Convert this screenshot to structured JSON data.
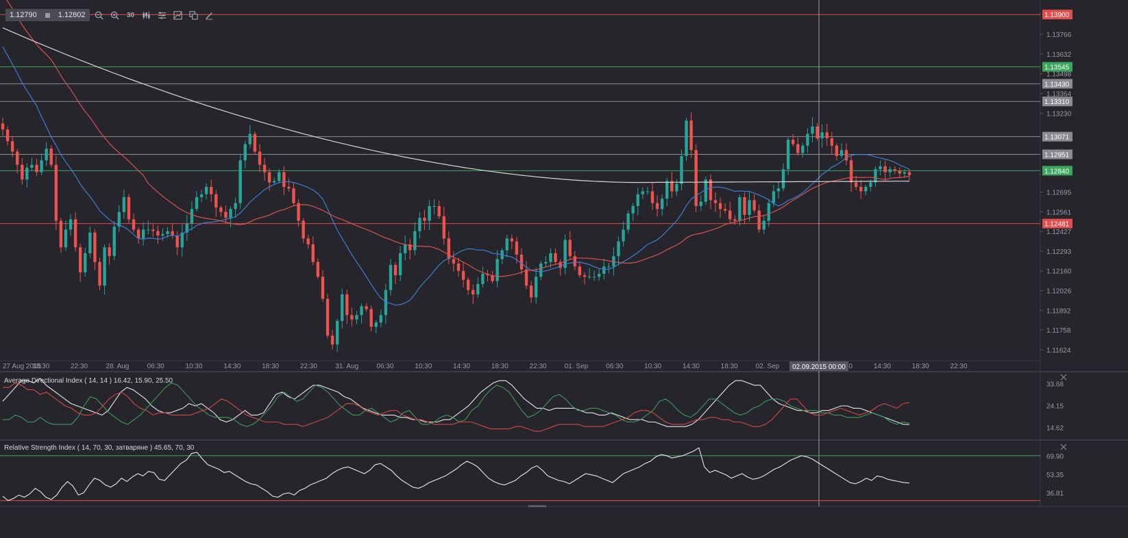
{
  "toolbar": {
    "bid": "1.12790",
    "ask": "1.12802",
    "timeframe": "30",
    "tools": [
      "zoom-out-icon",
      "zoom-in-icon",
      "timeframe",
      "candles-icon",
      "settings-sliders-icon",
      "chart-area-icon",
      "copy-icon",
      "pencil-icon"
    ]
  },
  "colors": {
    "background": "#25252b",
    "bull": "#26a69a",
    "bear": "#ef5350",
    "sma_fast": "#3b7fd4",
    "sma_mid": "#d9534f",
    "sma_slow": "#d8d8d8",
    "grid": "#34343b",
    "level_red": "#e04e4e",
    "level_green": "#3aa75c",
    "level_gray": "#8a8a90"
  },
  "chart_data": [
    {
      "type": "candlestick",
      "symbol_precision": 5,
      "ylim": [
        1.1155,
        1.1398
      ],
      "y_ticks": [
        "1.13766",
        "1.13632",
        "1.13498",
        "1.13364",
        "1.13230",
        "1.12695",
        "1.12561",
        "1.12427",
        "1.12293",
        "1.12160",
        "1.12026",
        "1.11892",
        "1.11758",
        "1.11624"
      ],
      "x_ticks": [
        "27 Aug 2015",
        "18:30",
        "22:30",
        "28. Aug",
        "06:30",
        "10:30",
        "14:30",
        "18:30",
        "22:30",
        "31. Aug",
        "06:30",
        "10:30",
        "14:30",
        "18:30",
        "22:30",
        "01. Sep",
        "06:30",
        "10:30",
        "14:30",
        "18:30",
        "02. Sep",
        "06:30",
        "10:30",
        "14:30",
        "18:30",
        "22:30"
      ],
      "crosshair_label": "02.09.2015 00:00",
      "horizontal_levels": [
        {
          "value": 1.139,
          "label": "1.13900",
          "color": "red"
        },
        {
          "value": 1.13545,
          "label": "1.13545",
          "color": "green"
        },
        {
          "value": 1.1343,
          "label": "1.13430",
          "color": "gray"
        },
        {
          "value": 1.1331,
          "label": "1.13310",
          "color": "gray"
        },
        {
          "value": 1.13071,
          "label": "1.13071",
          "color": "gray"
        },
        {
          "value": 1.12951,
          "label": "1.12951",
          "color": "gray"
        },
        {
          "value": 1.1284,
          "label": "1.12840",
          "color": "green"
        },
        {
          "value": 1.12481,
          "label": "1.12481",
          "color": "red"
        }
      ],
      "series": [
        {
          "kind": "close",
          "values": [
            1.1312,
            1.1304,
            1.1297,
            1.1288,
            1.1278,
            1.1286,
            1.1288,
            1.1283,
            1.1291,
            1.1299,
            1.1288,
            1.125,
            1.1232,
            1.1244,
            1.1251,
            1.1232,
            1.1215,
            1.1228,
            1.1242,
            1.1222,
            1.1206,
            1.1232,
            1.1226,
            1.1246,
            1.1256,
            1.1266,
            1.1251,
            1.1244,
            1.1238,
            1.1244,
            1.1244,
            1.1243,
            1.124,
            1.1241,
            1.1243,
            1.124,
            1.1232,
            1.1242,
            1.1248,
            1.1258,
            1.1266,
            1.1268,
            1.1273,
            1.1268,
            1.1259,
            1.1256,
            1.1252,
            1.1258,
            1.1262,
            1.1291,
            1.1302,
            1.1309,
            1.1297,
            1.1288,
            1.1283,
            1.1276,
            1.1277,
            1.1283,
            1.1273,
            1.1272,
            1.1262,
            1.125,
            1.1238,
            1.1234,
            1.1222,
            1.1212,
            1.1197,
            1.1172,
            1.1166,
            1.1182,
            1.12,
            1.1186,
            1.1183,
            1.1186,
            1.1192,
            1.119,
            1.1178,
            1.1181,
            1.1186,
            1.1203,
            1.122,
            1.1213,
            1.1228,
            1.1234,
            1.123,
            1.1243,
            1.1252,
            1.125,
            1.126,
            1.126,
            1.1253,
            1.1238,
            1.1224,
            1.1221,
            1.1216,
            1.121,
            1.1203,
            1.12,
            1.1207,
            1.1214,
            1.1213,
            1.1209,
            1.1224,
            1.123,
            1.1238,
            1.1236,
            1.1227,
            1.1217,
            1.1206,
            1.1198,
            1.1212,
            1.1221,
            1.1222,
            1.1228,
            1.1222,
            1.1218,
            1.1237,
            1.1226,
            1.1219,
            1.1213,
            1.1212,
            1.1212,
            1.1212,
            1.1214,
            1.1219,
            1.1219,
            1.1226,
            1.1236,
            1.1244,
            1.1255,
            1.126,
            1.1268,
            1.127,
            1.127,
            1.1262,
            1.1258,
            1.1265,
            1.1277,
            1.127,
            1.1275,
            1.1294,
            1.1318,
            1.1298,
            1.126,
            1.1263,
            1.1278,
            1.1264,
            1.1262,
            1.1258,
            1.1257,
            1.1251,
            1.125,
            1.1266,
            1.1254,
            1.1264,
            1.1257,
            1.1244,
            1.125,
            1.1262,
            1.127,
            1.1272,
            1.1285,
            1.1305,
            1.1302,
            1.1296,
            1.1301,
            1.1309,
            1.1314,
            1.1306,
            1.131,
            1.1306,
            1.1301,
            1.1294,
            1.1298,
            1.1291,
            1.1276,
            1.1273,
            1.127,
            1.1273,
            1.1276,
            1.1285,
            1.1287,
            1.1283,
            1.1285,
            1.1284,
            1.1282,
            1.1283,
            1.1281
          ]
        },
        {
          "kind": "sma_slow_endpoints",
          "values": [
            1.1381,
            1.1276
          ]
        }
      ]
    },
    {
      "type": "line",
      "title": "Average Directional Index ( 14, 14 ) 16.42, 15.90, 25.50",
      "y_ticks": [
        "33.68",
        "24.15",
        "14.62"
      ],
      "ylim": [
        10,
        38
      ],
      "series": [
        {
          "kind": "adx",
          "values": [
            26,
            29,
            32,
            35,
            35,
            34,
            36,
            33,
            31,
            29,
            27,
            25,
            24,
            23,
            22,
            21,
            20,
            22,
            26,
            30,
            32,
            31,
            29,
            27,
            24,
            22,
            21,
            21,
            22,
            23,
            25,
            24,
            25,
            23,
            21,
            18,
            17,
            18,
            20,
            22,
            20,
            20,
            21,
            25,
            29,
            30,
            28,
            27,
            29,
            31,
            33,
            33,
            32,
            31,
            30,
            28,
            27,
            25,
            23,
            22,
            21,
            20,
            20,
            20,
            19,
            19,
            18,
            18,
            17,
            17,
            17,
            18,
            18,
            20,
            22,
            24,
            27,
            30,
            32,
            34,
            35,
            35,
            33,
            30,
            27,
            25,
            23,
            23,
            22,
            23,
            23,
            23,
            23,
            22,
            21,
            21,
            20,
            20,
            21,
            20,
            19,
            18,
            18,
            18,
            17,
            17,
            16,
            15,
            15,
            15,
            15,
            16,
            18,
            21,
            24,
            27,
            30,
            33,
            35,
            35,
            34,
            33,
            33,
            30,
            27,
            25,
            24,
            23,
            22,
            22,
            21,
            21,
            22,
            22,
            23,
            24,
            24,
            23,
            23,
            22,
            21,
            20,
            19,
            18,
            17,
            16,
            15.9
          ]
        },
        {
          "kind": "plus_di",
          "values": [
            18,
            18,
            20,
            19,
            17,
            17,
            19,
            17,
            16,
            16,
            16,
            16,
            19,
            24,
            28,
            27,
            24,
            21,
            19,
            17,
            16,
            18,
            20,
            23,
            26,
            29,
            32,
            34,
            33,
            30,
            27,
            24,
            22,
            20,
            19,
            19,
            19,
            18,
            16,
            15,
            16,
            18,
            21,
            24,
            28,
            30,
            28,
            26,
            27,
            30,
            33,
            32,
            30,
            27,
            24,
            22,
            20,
            20,
            22,
            23,
            21,
            19,
            17,
            18,
            21,
            22,
            19,
            16,
            16,
            17,
            19,
            20,
            19,
            17,
            18,
            22,
            24,
            28,
            31,
            33,
            32,
            30,
            26,
            22,
            19,
            20,
            22,
            25,
            28,
            29,
            27,
            24,
            22,
            22,
            23,
            23,
            22,
            21,
            20,
            18,
            17,
            17,
            18,
            20,
            22,
            26,
            27,
            25,
            22,
            20,
            19,
            21,
            24,
            27,
            27,
            25,
            23,
            21,
            20,
            21,
            23,
            24,
            26,
            27,
            27,
            26,
            24,
            23,
            22,
            22,
            22,
            21,
            21,
            20,
            20,
            19,
            19,
            19,
            20,
            21,
            20,
            19,
            17,
            16,
            17,
            16.4
          ]
        },
        {
          "kind": "minus_di",
          "values": [
            32,
            32,
            34,
            33,
            31,
            31,
            29,
            30,
            28,
            26,
            24,
            23,
            21,
            20,
            20,
            21,
            24,
            27,
            29,
            30,
            28,
            25,
            23,
            22,
            20,
            21,
            21,
            20,
            20,
            20,
            20,
            21,
            22,
            23,
            25,
            27,
            26,
            24,
            22,
            20,
            19,
            18,
            17,
            17,
            17,
            16,
            16,
            16,
            15,
            16,
            17,
            18,
            19,
            21,
            23,
            25,
            25,
            24,
            22,
            21,
            20,
            21,
            22,
            22,
            20,
            19,
            18,
            18,
            17,
            16,
            16,
            16,
            16,
            17,
            17,
            17,
            16,
            15,
            14,
            14,
            14,
            14,
            15,
            15,
            14,
            13,
            13,
            14,
            15,
            16,
            16,
            16,
            16,
            15,
            15,
            15,
            15,
            16,
            17,
            18,
            19,
            21,
            22,
            22,
            21,
            19,
            17,
            16,
            16,
            16,
            17,
            18,
            18,
            19,
            19,
            18,
            18,
            17,
            17,
            16,
            15,
            15,
            16,
            18,
            21,
            24,
            27,
            27,
            24,
            21,
            20,
            20,
            21,
            22,
            23,
            22,
            21,
            20,
            21,
            22,
            24,
            25,
            24,
            23,
            25,
            25.5
          ]
        }
      ]
    },
    {
      "type": "line",
      "title": "Relative Strength Index ( 14, 70, 30, затваряне ) 45.65, 70, 30",
      "y_ticks": [
        "69.90",
        "53.35",
        "36.81"
      ],
      "ylim": [
        26,
        82
      ],
      "levels": [
        70,
        30
      ],
      "series": [
        {
          "kind": "rsi",
          "values": [
            34,
            30,
            32,
            35,
            33,
            36,
            41,
            38,
            33,
            31,
            35,
            42,
            47,
            43,
            35,
            37,
            44,
            50,
            48,
            44,
            42,
            45,
            50,
            47,
            51,
            54,
            52,
            56,
            55,
            49,
            48,
            53,
            58,
            63,
            66,
            72,
            73,
            67,
            62,
            60,
            58,
            55,
            56,
            53,
            50,
            47,
            45,
            44,
            41,
            38,
            34,
            33,
            36,
            37,
            35,
            39,
            41,
            44,
            46,
            48,
            50,
            54,
            57,
            59,
            60,
            58,
            56,
            54,
            57,
            62,
            63,
            60,
            57,
            52,
            48,
            45,
            42,
            41,
            43,
            46,
            48,
            50,
            52,
            55,
            58,
            62,
            65,
            63,
            60,
            55,
            50,
            47,
            45,
            44,
            46,
            48,
            52,
            55,
            59,
            61,
            57,
            52,
            50,
            48,
            47,
            45,
            48,
            51,
            54,
            53,
            52,
            50,
            48,
            46,
            50,
            54,
            56,
            58,
            60,
            63,
            65,
            69,
            71,
            70,
            68,
            69,
            70,
            72,
            74,
            77,
            60,
            55,
            57,
            55,
            53,
            50,
            52,
            54,
            51,
            49,
            50,
            52,
            55,
            58,
            60,
            63,
            66,
            68,
            70,
            69,
            67,
            64,
            61,
            58,
            55,
            52,
            49,
            46,
            45,
            47,
            50,
            48,
            52,
            51,
            49,
            48,
            47,
            46,
            45.65
          ]
        }
      ]
    }
  ]
}
